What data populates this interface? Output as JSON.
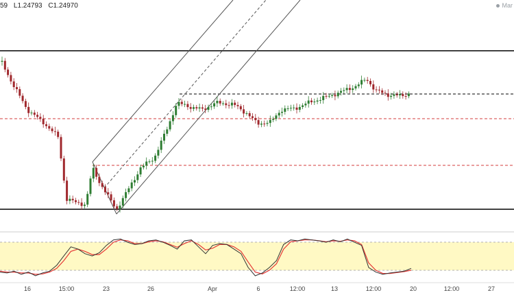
{
  "header": {
    "ohlc_high": "59",
    "ohlc_low": "L1.24793",
    "ohlc_close": "C1.24970",
    "market_label": "Mar"
  },
  "time_axis": {
    "labels": [
      "16",
      "15:00",
      "23",
      "26",
      "Apr",
      "6",
      "12:00",
      "13",
      "12:00",
      "20",
      "12:00",
      "27"
    ]
  },
  "colors": {
    "bull_candle": "#2e7d32",
    "bear_candle": "#a0282d",
    "level_line": "#000000",
    "dashed_red": "#d33b3b",
    "stoch_k": "#333333",
    "stoch_d": "#e53935",
    "stoch_band": "#fff9c4"
  },
  "stochastic": {
    "k": [
      20,
      18,
      22,
      15,
      20,
      12,
      18,
      22,
      35,
      55,
      75,
      70,
      60,
      55,
      62,
      78,
      90,
      92,
      85,
      80,
      82,
      88,
      90,
      85,
      78,
      70,
      88,
      90,
      75,
      60,
      78,
      82,
      80,
      70,
      60,
      30,
      12,
      18,
      30,
      45,
      80,
      90,
      88,
      92,
      90,
      88,
      85,
      90,
      86,
      92,
      85,
      78,
      30,
      20,
      15,
      18,
      20,
      22,
      28
    ],
    "d": [
      22,
      20,
      20,
      18,
      18,
      15,
      16,
      20,
      28,
      45,
      65,
      70,
      65,
      58,
      58,
      70,
      85,
      90,
      88,
      82,
      82,
      86,
      88,
      86,
      80,
      74,
      82,
      88,
      80,
      68,
      72,
      80,
      80,
      75,
      65,
      42,
      20,
      16,
      24,
      38,
      70,
      86,
      88,
      90,
      90,
      88,
      86,
      88,
      87,
      90,
      88,
      80,
      40,
      24,
      17,
      17,
      19,
      21,
      24
    ]
  }
}
